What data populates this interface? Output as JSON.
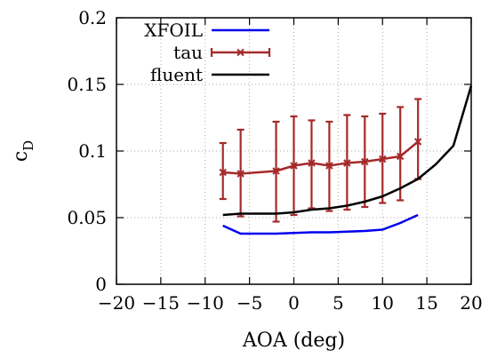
{
  "chart_data": {
    "type": "line",
    "xlabel": "AOA (deg)",
    "ylabel": "c_D",
    "xlim": [
      -20,
      20
    ],
    "ylim": [
      0,
      0.2
    ],
    "xticks": [
      -20,
      -15,
      -10,
      -5,
      0,
      5,
      10,
      15,
      20
    ],
    "yticks": [
      0,
      0.05,
      0.1,
      0.15,
      0.2
    ],
    "xtick_labels": [
      "−20",
      "−15",
      "−10",
      "−5",
      "0",
      "5",
      "10",
      "15",
      "20"
    ],
    "ytick_labels": [
      "0",
      "0.05",
      "0.1",
      "0.15",
      "0.2"
    ],
    "grid": true,
    "legend_position": "top-left",
    "series": [
      {
        "name": "XFOIL",
        "color": "#0000ee",
        "style": "line",
        "x": [
          -8,
          -6,
          -4,
          -2,
          0,
          2,
          4,
          6,
          8,
          10,
          12,
          14
        ],
        "y": [
          0.044,
          0.038,
          0.038,
          0.038,
          0.0385,
          0.039,
          0.039,
          0.0395,
          0.04,
          0.041,
          0.046,
          0.052
        ]
      },
      {
        "name": "tau",
        "color": "#a52a2a",
        "style": "errorbar",
        "x": [
          -8,
          -6,
          -2,
          0,
          2,
          4,
          6,
          8,
          10,
          12,
          14
        ],
        "y": [
          0.084,
          0.083,
          0.085,
          0.089,
          0.091,
          0.089,
          0.091,
          0.092,
          0.094,
          0.096,
          0.107
        ],
        "y_low": [
          0.064,
          0.051,
          0.047,
          0.052,
          0.057,
          0.055,
          0.056,
          0.058,
          0.061,
          0.063,
          0.079
        ],
        "y_high": [
          0.106,
          0.116,
          0.122,
          0.126,
          0.123,
          0.122,
          0.127,
          0.126,
          0.128,
          0.133,
          0.139
        ]
      },
      {
        "name": "fluent",
        "color": "#000000",
        "style": "line",
        "x": [
          -8,
          -6,
          -4,
          -2,
          0,
          2,
          4,
          6,
          8,
          10,
          12,
          14,
          16,
          18,
          20
        ],
        "y": [
          0.052,
          0.053,
          0.053,
          0.053,
          0.054,
          0.056,
          0.057,
          0.059,
          0.062,
          0.066,
          0.072,
          0.079,
          0.09,
          0.104,
          0.149
        ]
      }
    ]
  }
}
